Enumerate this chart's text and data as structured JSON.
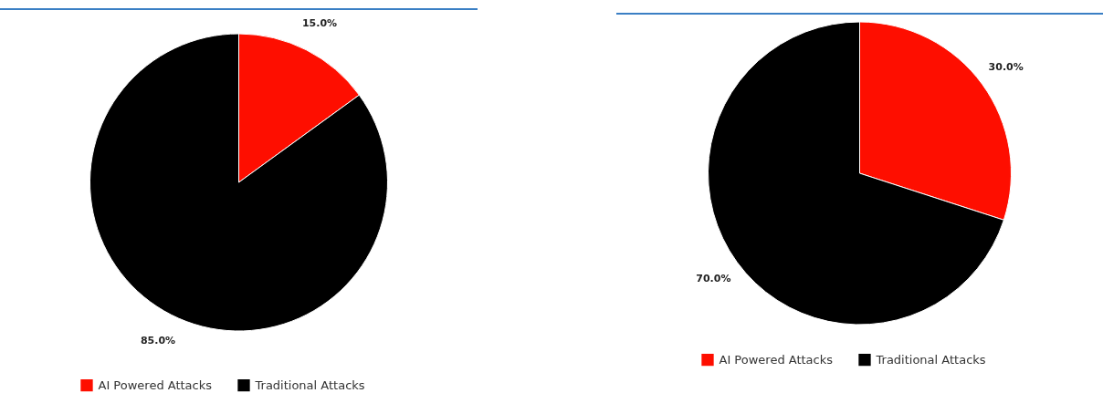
{
  "chart_data": [
    {
      "type": "pie",
      "categories": [
        "AI Powered Attacks",
        "Traditional Attacks"
      ],
      "values": [
        15,
        85
      ],
      "colors": [
        "#fe0e00",
        "#000000"
      ],
      "value_labels": [
        "15.0%",
        "85.0%"
      ],
      "legend": "bottom"
    },
    {
      "type": "pie",
      "categories": [
        "AI Powered Attacks",
        "Traditional Attacks"
      ],
      "values": [
        30,
        70
      ],
      "colors": [
        "#fe0e00",
        "#000000"
      ],
      "value_labels": [
        "30.0%",
        "70.0%"
      ],
      "legend": "bottom"
    }
  ]
}
